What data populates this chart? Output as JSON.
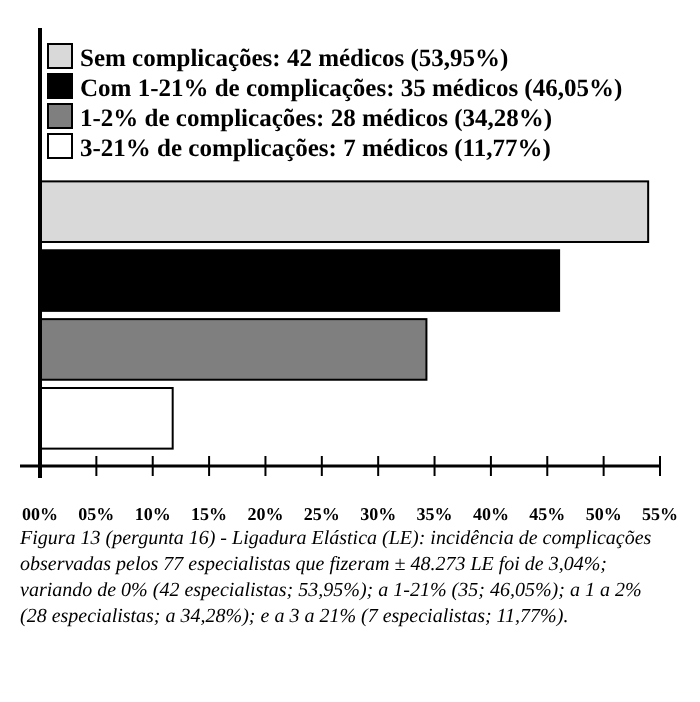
{
  "chart_data": {
    "type": "bar",
    "orientation": "horizontal",
    "stacked": true,
    "categories": [
      null,
      null,
      null,
      null
    ],
    "series": [
      {
        "name": "Sem complicações: 42 médicos (53,95%)",
        "color": "#d9d9d9",
        "values": [
          53.95,
          null,
          null,
          null
        ]
      },
      {
        "name": "Com 1-21% de complicações: 35 médicos (46,05%)",
        "color": "#000000",
        "values": [
          null,
          46.05,
          null,
          null
        ]
      },
      {
        "name": "1-2% de complicações: 28 médicos (34,28%)",
        "color": "#7f7f7f",
        "values": [
          null,
          null,
          34.28,
          null
        ]
      },
      {
        "name": "3-21% de complicações: 7 médicos (11,77%)",
        "color": "#ffffff",
        "values": [
          null,
          null,
          null,
          11.77
        ]
      }
    ],
    "xlim": [
      0,
      55
    ],
    "xticks": [
      {
        "value": 0,
        "label": "00%"
      },
      {
        "value": 5,
        "label": "05%"
      },
      {
        "value": 10,
        "label": "10%"
      },
      {
        "value": 15,
        "label": "15%"
      },
      {
        "value": 20,
        "label": "20%"
      },
      {
        "value": 25,
        "label": "25%"
      },
      {
        "value": 30,
        "label": "30%"
      },
      {
        "value": 35,
        "label": "35%"
      },
      {
        "value": 40,
        "label": "40%"
      },
      {
        "value": 45,
        "label": "45%"
      },
      {
        "value": 50,
        "label": "50%"
      },
      {
        "value": 55,
        "label": "55%"
      }
    ],
    "legend": "top left",
    "grid": false,
    "annotations": [
      "Figura 13 (pergunta 16) - Ligadura Elástica (LE): incidência de complicações observadas pelos 77 especialistas que fizeram ± 48.273 LE foi de 3,04%; variando de 0% (42 especialistas; 53,95%); a 1-21% (35; 46,05%); a 1 a 2% (28 especialistas; a 34,28%); e a 3 a 21% (7 especialistas; 11,77%)."
    ]
  }
}
